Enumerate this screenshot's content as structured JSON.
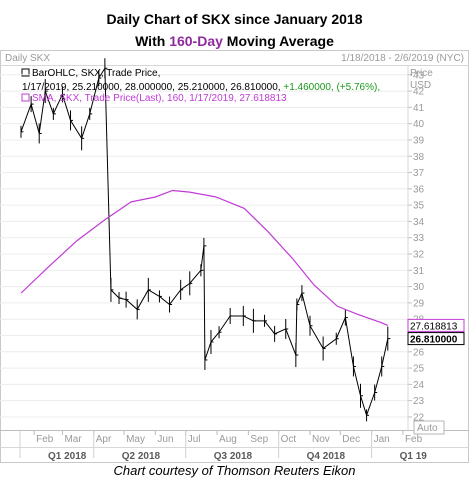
{
  "title": {
    "line1": "Daily Chart of SKX since January 2018",
    "line2_prefix": "With ",
    "line2_highlight": "160-Day",
    "line2_suffix": " Moving Average"
  },
  "credit": "Chart courtesy of Thomson Reuters Eikon",
  "colors": {
    "price": "#000000",
    "sma": "#c13bd6",
    "highlight": "#8e2a9e",
    "price_box": "#000000",
    "sma_box": "#c13bd6"
  },
  "chart_data": {
    "type": "line",
    "panel_label": "Daily SKX",
    "date_range": "1/18/2018 - 2/6/2019 (NYC)",
    "axis_title": "Price",
    "axis_currency": "USD",
    "legend": [
      "BarOHLC, SKX, Trade Price, , 1/17/2019, 25.210000, 28.000000, 25.210000, 26.810000, +1.460000, (+5.76%),",
      "SMA, SKX, Trade Price(Last),  160, 1/17/2019, 27.618813"
    ],
    "legend_change": "+1.460000, (+5.76%),",
    "x_ticks": [
      "Feb",
      "Mar",
      "Apr",
      "May",
      "Jun",
      "Jul",
      "Aug",
      "Sep",
      "Oct",
      "Nov",
      "Dec",
      "Jan",
      "Feb"
    ],
    "quarters": [
      "Q1 2018",
      "Q2 2018",
      "Q3 2018",
      "Q4 2018",
      "Q1 19"
    ],
    "y_ticks": [
      22,
      23,
      24,
      25,
      26,
      27,
      28,
      29,
      30,
      31,
      32,
      33,
      34,
      35,
      36,
      37,
      38,
      39,
      40,
      41,
      42,
      43
    ],
    "ylim": [
      21.2,
      43.6
    ],
    "auto_label": "Auto",
    "price_label": "26.810000",
    "sma_label": "27.618813",
    "series": [
      {
        "name": "SKX",
        "x": [
          "2018-01-19",
          "2018-01-29",
          "2018-02-06",
          "2018-02-12",
          "2018-02-20",
          "2018-03-01",
          "2018-03-09",
          "2018-03-20",
          "2018-03-28",
          "2018-04-06",
          "2018-04-12",
          "2018-04-18",
          "2018-04-26",
          "2018-05-03",
          "2018-05-14",
          "2018-05-25",
          "2018-06-05",
          "2018-06-15",
          "2018-06-26",
          "2018-07-05",
          "2018-07-16",
          "2018-07-19",
          "2018-07-20",
          "2018-07-26",
          "2018-08-03",
          "2018-08-14",
          "2018-08-27",
          "2018-09-06",
          "2018-09-17",
          "2018-09-27",
          "2018-10-08",
          "2018-10-18",
          "2018-10-19",
          "2018-10-24",
          "2018-11-01",
          "2018-11-14",
          "2018-11-27",
          "2018-12-06",
          "2018-12-14",
          "2018-12-21",
          "2018-12-27",
          "2019-01-04",
          "2019-01-11",
          "2019-01-17"
        ],
        "values": [
          39.5,
          41.2,
          39.4,
          42.0,
          40.6,
          41.8,
          40.2,
          39.1,
          40.6,
          42.8,
          43.4,
          29.8,
          29.3,
          29.2,
          28.6,
          29.8,
          29.4,
          28.9,
          29.8,
          30.2,
          31.0,
          32.5,
          25.5,
          26.6,
          27.2,
          28.2,
          28.2,
          27.9,
          27.9,
          27.1,
          27.4,
          25.8,
          28.9,
          29.6,
          27.6,
          26.2,
          26.8,
          28.1,
          25.1,
          23.3,
          22.1,
          23.5,
          25.1,
          26.81
        ]
      },
      {
        "name": "SMA 160",
        "x": [
          "2018-01-19",
          "2018-02-15",
          "2018-03-15",
          "2018-04-12",
          "2018-05-08",
          "2018-06-01",
          "2018-06-18",
          "2018-07-05",
          "2018-07-31",
          "2018-08-28",
          "2018-09-20",
          "2018-10-15",
          "2018-11-05",
          "2018-11-28",
          "2018-12-18",
          "2019-01-10",
          "2019-01-17"
        ],
        "values": [
          29.6,
          31.2,
          32.8,
          34.1,
          35.2,
          35.5,
          35.9,
          35.8,
          35.5,
          34.8,
          33.4,
          31.7,
          30.1,
          28.8,
          28.3,
          27.8,
          27.62
        ]
      }
    ]
  }
}
